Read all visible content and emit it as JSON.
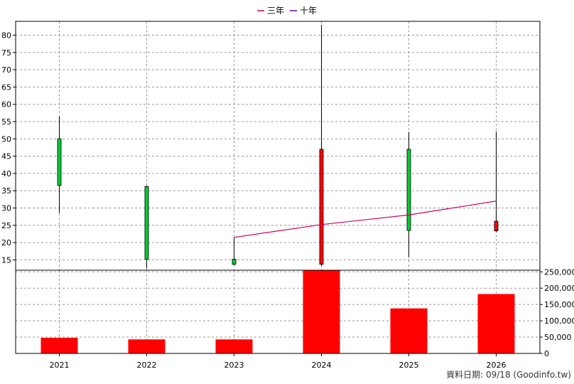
{
  "chart_data": [
    {
      "type": "candlestick",
      "legend": [
        {
          "name": "三年",
          "color": "#cc0066"
        },
        {
          "name": "十年",
          "color": "#660099"
        }
      ],
      "categories": [
        "2021",
        "2022",
        "2023",
        "2024",
        "2025",
        "2026"
      ],
      "ylim": [
        12,
        84
      ],
      "yticks": [
        15,
        20,
        25,
        30,
        35,
        40,
        45,
        50,
        55,
        60,
        65,
        70,
        75,
        80
      ],
      "grid": true,
      "candles": [
        {
          "x": "2021",
          "open": 36.5,
          "close": 50,
          "high": 56.5,
          "low": 28.5,
          "color": "#00cc33"
        },
        {
          "x": "2022",
          "open": 15.2,
          "close": 36.2,
          "high": 36.5,
          "low": 12.5,
          "color": "#00cc33"
        },
        {
          "x": "2023",
          "open": 13.7,
          "close": 15.2,
          "high": 21.5,
          "low": 13.5,
          "color": "#00cc33"
        },
        {
          "x": "2024",
          "open": 47,
          "close": 13.7,
          "high": 83,
          "low": 13.2,
          "color": "#ff0000"
        },
        {
          "x": "2025",
          "open": 23.5,
          "close": 47,
          "high": 52,
          "low": 15.8,
          "color": "#00cc33"
        },
        {
          "x": "2026",
          "open": 26.2,
          "close": 23.4,
          "high": 52.2,
          "low": 23,
          "color": "#ff0000"
        }
      ],
      "lines": [
        {
          "name": "三年",
          "color": "#cc0066",
          "points": [
            [
              "2023",
              21.5
            ],
            [
              "2024",
              25.2
            ],
            [
              "2025",
              28
            ],
            [
              "2026",
              32
            ]
          ]
        }
      ]
    },
    {
      "type": "bar",
      "categories": [
        "2021",
        "2022",
        "2023",
        "2024",
        "2025",
        "2026"
      ],
      "values": [
        48000,
        43000,
        43000,
        255000,
        138000,
        182000
      ],
      "ylim": [
        0,
        255000
      ],
      "yticks": [
        0,
        50000,
        100000,
        150000,
        200000,
        250000
      ],
      "ytick_labels": [
        "0",
        "50,000",
        "100,000",
        "150,000",
        "200,000",
        "250,000"
      ],
      "color": "#ff0000",
      "grid": true
    }
  ],
  "credit": "資料日期: 09/18  (Goodinfo.tw)"
}
